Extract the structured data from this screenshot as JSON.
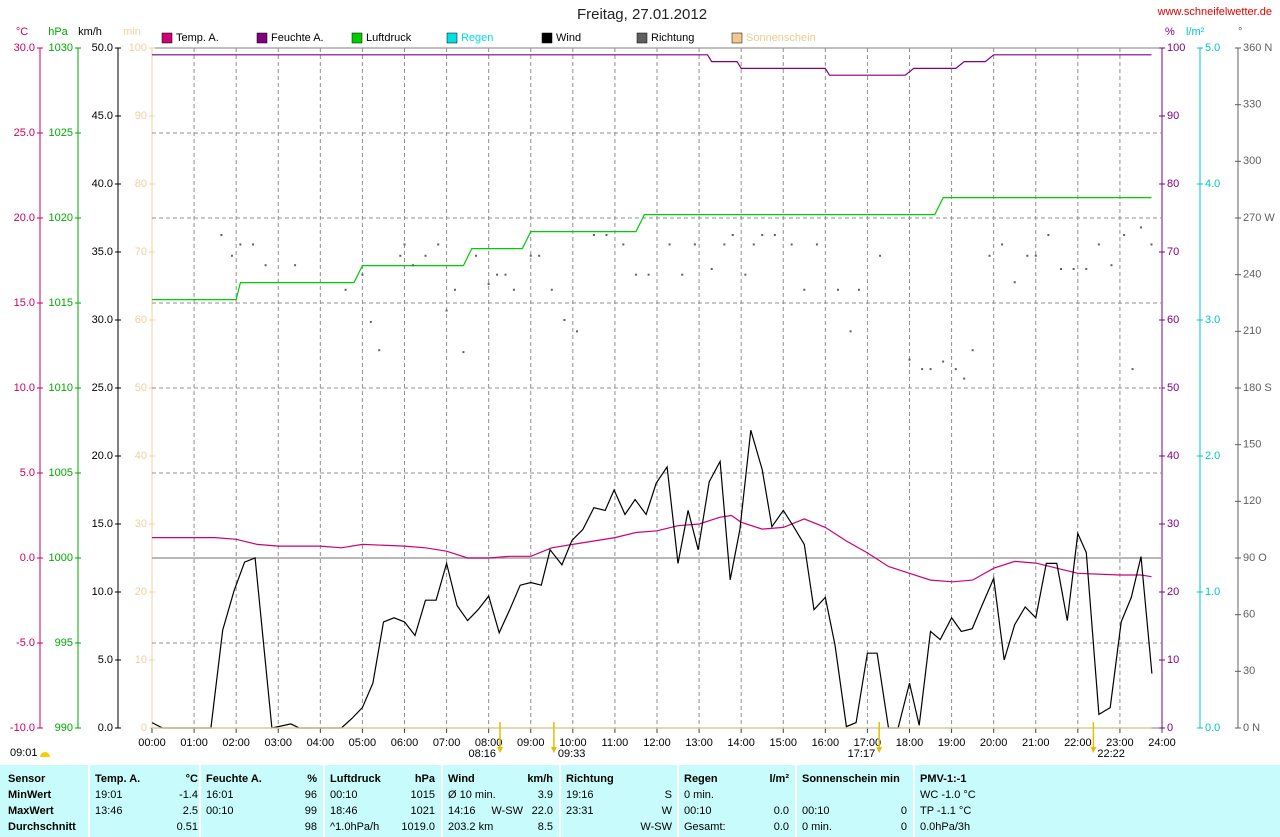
{
  "chart_data": {
    "type": "line",
    "title": "Freitag, 27.01.2012",
    "source": "www.schneifelwetter.de",
    "grid": true,
    "xlim": [
      0,
      24
    ],
    "xticks": [
      {
        "value": 0,
        "label": "00:00"
      },
      {
        "value": 1,
        "label": "01:00"
      },
      {
        "value": 2,
        "label": "02:00"
      },
      {
        "value": 3,
        "label": "03:00"
      },
      {
        "value": 4,
        "label": "04:00"
      },
      {
        "value": 5,
        "label": "05:00"
      },
      {
        "value": 6,
        "label": "06:00"
      },
      {
        "value": 7,
        "label": "07:00"
      },
      {
        "value": 8,
        "label": "08:00"
      },
      {
        "value": 9,
        "label": "09:00"
      },
      {
        "value": 10,
        "label": "10:00"
      },
      {
        "value": 11,
        "label": "11:00"
      },
      {
        "value": 12,
        "label": "12:00"
      },
      {
        "value": 13,
        "label": "13:00"
      },
      {
        "value": 14,
        "label": "14:00"
      },
      {
        "value": 15,
        "label": "15:00"
      },
      {
        "value": 16,
        "label": "16:00"
      },
      {
        "value": 17,
        "label": "17:00"
      },
      {
        "value": 18,
        "label": "18:00"
      },
      {
        "value": 19,
        "label": "19:00"
      },
      {
        "value": 20,
        "label": "20:00"
      },
      {
        "value": 21,
        "label": "21:00"
      },
      {
        "value": 22,
        "label": "22:00"
      },
      {
        "value": 23,
        "label": "23:00"
      },
      {
        "value": 24,
        "label": "24:00"
      }
    ],
    "ylabel": "°C",
    "ylim": [
      -10,
      30
    ],
    "yticks": [
      {
        "value": -10,
        "label": "-10.0"
      },
      {
        "value": -5,
        "label": "-5.0"
      },
      {
        "value": 0,
        "label": "0.0"
      },
      {
        "value": 5,
        "label": "5.0"
      },
      {
        "value": 10,
        "label": "10.0"
      },
      {
        "value": 15,
        "label": "15.0"
      },
      {
        "value": 20,
        "label": "20.0"
      },
      {
        "value": 25,
        "label": "25.0"
      },
      {
        "value": 30,
        "label": "30.0"
      }
    ],
    "y2label": "hPa",
    "y2lim": [
      990,
      1030
    ],
    "y2ticks": [
      990,
      995,
      1000,
      1005,
      1010,
      1015,
      1020,
      1025,
      1030
    ],
    "y3label": "km/h",
    "y3lim": [
      0,
      50
    ],
    "y3ticks": [
      {
        "value": 0,
        "label": "0.0"
      },
      {
        "value": 5,
        "label": "5.0"
      },
      {
        "value": 10,
        "label": "10.0"
      },
      {
        "value": 15,
        "label": "15.0"
      },
      {
        "value": 20,
        "label": "20.0"
      },
      {
        "value": 25,
        "label": "25.0"
      },
      {
        "value": 30,
        "label": "30.0"
      },
      {
        "value": 35,
        "label": "35.0"
      },
      {
        "value": 40,
        "label": "40.0"
      },
      {
        "value": 45,
        "label": "45.0"
      },
      {
        "value": 50,
        "label": "50.0"
      }
    ],
    "y4label": "min",
    "y4lim": [
      0,
      100
    ],
    "y4ticks": [
      0,
      10,
      20,
      30,
      40,
      50,
      60,
      70,
      80,
      90,
      100
    ],
    "y5label": "%",
    "y5lim": [
      0,
      100
    ],
    "y5ticks": [
      0,
      10,
      20,
      30,
      40,
      50,
      60,
      70,
      80,
      90,
      100
    ],
    "y6label": "l/m²",
    "y6lim": [
      0,
      5
    ],
    "y6ticks": [
      {
        "value": 0,
        "label": "0.0"
      },
      {
        "value": 1,
        "label": "1.0"
      },
      {
        "value": 2,
        "label": "2.0"
      },
      {
        "value": 3,
        "label": "3.0"
      },
      {
        "value": 4,
        "label": "4.0"
      },
      {
        "value": 5,
        "label": "5.0"
      }
    ],
    "y7label": "°",
    "y7lim": [
      0,
      360
    ],
    "y7ticks": [
      {
        "value": 0,
        "label": "0 N"
      },
      30,
      60,
      {
        "value": 90,
        "label": "90 O"
      },
      120,
      150,
      {
        "value": 180,
        "label": "180 S"
      },
      210,
      240,
      {
        "value": 270,
        "label": "270 W"
      },
      300,
      330,
      {
        "value": 360,
        "label": "360 N"
      }
    ],
    "axis_colors": {
      "y": "#cc0066",
      "y2": "#00aa00",
      "y3": "#000000",
      "y4": "#f0d0a0",
      "y5": "#800080",
      "y6": "#00c8c8",
      "y7": "#606060"
    },
    "series": [
      {
        "name": "Temp. A.",
        "color": "#cc0077",
        "axis": "y",
        "type": "line",
        "x": [
          0,
          1.5,
          2,
          2.5,
          3,
          4,
          4.5,
          5,
          6,
          6.5,
          7,
          7.5,
          8,
          8.5,
          9,
          9.5,
          10,
          10.5,
          11,
          11.5,
          12,
          12.5,
          13,
          13.5,
          13.77,
          14,
          14.5,
          15,
          15.5,
          16,
          16.5,
          17,
          17.5,
          18,
          18.5,
          19.02,
          19.5,
          20,
          20.5,
          21,
          21.5,
          22,
          23,
          23.5,
          23.75
        ],
        "values": [
          1.2,
          1.2,
          1.1,
          0.8,
          0.7,
          0.7,
          0.6,
          0.8,
          0.7,
          0.6,
          0.4,
          0.0,
          0.0,
          0.1,
          0.1,
          0.6,
          0.8,
          1.0,
          1.2,
          1.5,
          1.6,
          1.9,
          2.0,
          2.4,
          2.5,
          2.1,
          1.7,
          1.8,
          2.3,
          1.8,
          1.0,
          0.3,
          -0.5,
          -0.9,
          -1.3,
          -1.4,
          -1.3,
          -0.6,
          -0.2,
          -0.3,
          -0.6,
          -0.9,
          -1.0,
          -1.0,
          -1.1
        ]
      },
      {
        "name": "Feuchte A.",
        "color": "#800080",
        "axis": "y5",
        "type": "line",
        "x": [
          0,
          13.2,
          13.3,
          13.9,
          14,
          16,
          16.1,
          17.9,
          18.1,
          19.1,
          19.3,
          19.8,
          20,
          23.75
        ],
        "values": [
          99,
          99,
          98,
          98,
          97,
          97,
          96,
          96,
          97,
          97,
          98,
          98,
          99,
          99
        ]
      },
      {
        "name": "Luftdruck",
        "color": "#00cc00",
        "axis": "y2",
        "type": "line",
        "x": [
          0,
          2,
          2.1,
          4.8,
          5,
          7.4,
          7.6,
          8.8,
          9,
          11.5,
          11.7,
          18.6,
          18.8,
          23.75
        ],
        "values": [
          1015.2,
          1015.2,
          1016.2,
          1016.2,
          1017.2,
          1017.2,
          1018.2,
          1018.2,
          1019.2,
          1019.2,
          1020.2,
          1020.2,
          1021.2,
          1021.2
        ]
      },
      {
        "name": "Regen",
        "color": "#00e0e0",
        "axis": "y6",
        "type": "line",
        "x": [
          0,
          23.75
        ],
        "values": [
          0,
          0
        ]
      },
      {
        "name": "Wind",
        "color": "#000000",
        "axis": "y3",
        "type": "line",
        "x": [
          0,
          0.25,
          1.4,
          1.68,
          1.95,
          2.2,
          2.45,
          2.85,
          3.3,
          3.5,
          4.5,
          4.75,
          5,
          5.25,
          5.5,
          5.75,
          6,
          6.25,
          6.5,
          6.75,
          7,
          7.25,
          7.5,
          7.75,
          8,
          8.25,
          8.5,
          8.75,
          9,
          9.25,
          9.46,
          9.74,
          9.98,
          10.24,
          10.5,
          10.77,
          10.98,
          11.24,
          11.48,
          11.74,
          11.98,
          12.24,
          12.5,
          12.74,
          12.98,
          13.24,
          13.5,
          13.74,
          13.97,
          14.23,
          14.5,
          14.73,
          15,
          15.23,
          15.5,
          15.73,
          16,
          16.23,
          16.5,
          16.73,
          17,
          17.23,
          17.5,
          17.73,
          18,
          18.23,
          18.5,
          18.73,
          19,
          19.23,
          19.49,
          19.72,
          20,
          20.25,
          20.5,
          20.75,
          21,
          21.25,
          21.5,
          21.75,
          22,
          22.2,
          22.5,
          22.77,
          23.03,
          23.27,
          23.5,
          23.76
        ],
        "values": [
          0.4,
          0,
          0,
          7.2,
          10.1,
          12.2,
          12.5,
          0,
          0.3,
          0,
          0,
          0.7,
          1.5,
          3.3,
          7.8,
          8.1,
          7.8,
          6.8,
          9.4,
          9.4,
          12.1,
          9.0,
          7.9,
          8.7,
          9.7,
          7.0,
          8.7,
          10.5,
          10.7,
          10.5,
          13.1,
          12.0,
          13.8,
          14.6,
          16.2,
          16.0,
          17.5,
          15.7,
          16.8,
          15.7,
          18.0,
          19.2,
          12.1,
          16.0,
          13.1,
          18.1,
          19.6,
          10.9,
          14.6,
          21.9,
          19.0,
          14.8,
          16.0,
          14.9,
          13.5,
          8.7,
          9.6,
          6.1,
          0.1,
          0.4,
          5.5,
          5.5,
          0,
          0,
          3.3,
          0.2,
          7.1,
          6.5,
          8.1,
          7.1,
          7.3,
          9.0,
          11.0,
          5.0,
          7.6,
          8.9,
          8.1,
          12.1,
          12.1,
          7.9,
          14.3,
          12.9,
          1.0,
          1.5,
          7.8,
          9.6,
          12.6,
          4.0
        ]
      },
      {
        "name": "Richtung",
        "color": "#606060",
        "axis": "y7",
        "type": "scatter",
        "x": [
          1.65,
          1.9,
          2.1,
          2.4,
          2.7,
          3.4,
          4.6,
          5.0,
          5.2,
          5.4,
          5.9,
          6.0,
          6.2,
          6.5,
          6.8,
          7.0,
          7.2,
          7.4,
          7.7,
          8.0,
          8.2,
          8.4,
          8.6,
          9.0,
          9.2,
          9.5,
          9.8,
          10.1,
          10.5,
          10.8,
          11.2,
          11.5,
          11.8,
          12.3,
          12.6,
          12.9,
          13.3,
          13.6,
          13.8,
          14.1,
          14.3,
          14.5,
          14.8,
          15.2,
          15.5,
          15.8,
          16.3,
          16.6,
          16.8,
          17.3,
          18.0,
          18.3,
          18.5,
          18.8,
          19.1,
          19.3,
          19.5,
          19.9,
          20.2,
          20.5,
          20.8,
          21.0,
          21.3,
          21.6,
          21.9,
          22.2,
          22.5,
          22.8,
          23.1,
          23.3,
          23.5,
          23.75
        ],
        "values": [
          261,
          250,
          256,
          256,
          245,
          245,
          232,
          240,
          215,
          200,
          250,
          256,
          245,
          250,
          256,
          221,
          232,
          199,
          250,
          235,
          240,
          240,
          232,
          250,
          250,
          232,
          216,
          210,
          261,
          261,
          256,
          240,
          240,
          256,
          240,
          256,
          243,
          256,
          261,
          240,
          256,
          261,
          261,
          256,
          232,
          256,
          232,
          210,
          232,
          250,
          195,
          190,
          190,
          194,
          190,
          185,
          200,
          250,
          256,
          236,
          250,
          250,
          261,
          243,
          243,
          243,
          256,
          245,
          261,
          190,
          265,
          256
        ]
      },
      {
        "name": "Sonnenschein",
        "color": "#f0c890",
        "axis": "y4",
        "type": "line",
        "x": [
          0,
          23.75
        ],
        "values": [
          0,
          0
        ]
      }
    ],
    "annotations": [
      {
        "x": 8.27,
        "label": "08:16"
      },
      {
        "x": 9.55,
        "label": "09:33"
      },
      {
        "x": 17.28,
        "label": "17:17"
      },
      {
        "x": 22.37,
        "label": "22:22"
      }
    ],
    "day_length": "09:01"
  },
  "table": {
    "groups": [
      {
        "header": {
          "left": "Sensor"
        },
        "rows": [
          {
            "left": "MinWert"
          },
          {
            "left": "MaxWert"
          },
          {
            "left": "Durchschnitt"
          }
        ]
      },
      {
        "header": {
          "left": "Temp. A.",
          "right": "°C"
        },
        "rows": [
          {
            "left": "19:01",
            "right": "-1.4"
          },
          {
            "left": "13:46",
            "right": "2.5"
          },
          {
            "right": "0.51"
          }
        ]
      },
      {
        "header": {
          "left": "Feuchte A.",
          "right": "%"
        },
        "rows": [
          {
            "left": "16:01",
            "right": "96"
          },
          {
            "left": "00:10",
            "right": "99"
          },
          {
            "right": "98"
          }
        ]
      },
      {
        "header": {
          "left": "Luftdruck",
          "right": "hPa"
        },
        "rows": [
          {
            "left": "00:10",
            "right": "1015"
          },
          {
            "left": "18:46",
            "right": "1021"
          },
          {
            "left": "^1.0hPa/h",
            "right": "1019.0"
          }
        ]
      },
      {
        "header": {
          "left": "Wind",
          "right": "km/h"
        },
        "rows": [
          {
            "left": "Ø 10 min.",
            "right": "3.9"
          },
          {
            "left": "14:16",
            "mid": "W-SW",
            "right": "22.0"
          },
          {
            "left": "203.2 km",
            "right": "8.5"
          }
        ]
      },
      {
        "header": {
          "left": "Richtung"
        },
        "rows": [
          {
            "left": "19:16",
            "right": "S"
          },
          {
            "left": "23:31",
            "right": "W"
          },
          {
            "right": "W-SW"
          }
        ]
      },
      {
        "header": {
          "left": "Regen",
          "right": "l/m²"
        },
        "rows": [
          {
            "left": "0 min."
          },
          {
            "left": "00:10",
            "right": "0.0"
          },
          {
            "left": "Gesamt:",
            "right": "0.0"
          }
        ]
      },
      {
        "header": {
          "left": "Sonnenschein min"
        },
        "rows": [
          null,
          {
            "left": "00:10",
            "right": "0"
          },
          {
            "left": "0 min.",
            "right": "0"
          }
        ]
      },
      {
        "header": {
          "left": "PMV-1:-1"
        },
        "rows": [
          {
            "left": "WC -1.0 °C"
          },
          {
            "left": "TP -1.1 °C"
          },
          {
            "left": "0.0hPa/3h"
          }
        ]
      }
    ]
  }
}
